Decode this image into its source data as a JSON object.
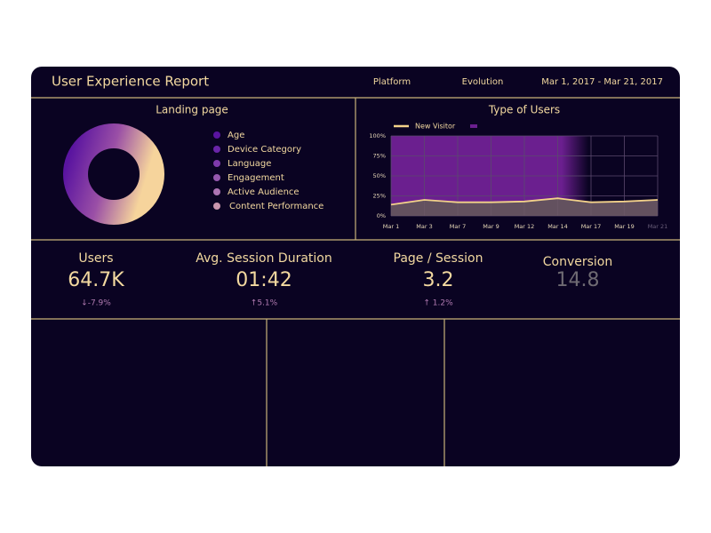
{
  "header": {
    "title": "User Experience Report",
    "nav": [
      "Platform",
      "Evolution"
    ],
    "date_range": "Mar 1, 2017 - Mar 21, 2017"
  },
  "landing_page": {
    "title": "Landing page",
    "legend": [
      "Age",
      "Device Category",
      "Language",
      "Engagement",
      "Active Audience",
      "Content Performance"
    ]
  },
  "type_of_users": {
    "chart_data": {
      "type": "area",
      "title": "Type of Users",
      "categories": [
        "Mar 1",
        "Mar 3",
        "Mar 7",
        "Mar 9",
        "Mar 12",
        "Mar 14",
        "Mar 17",
        "Mar 19",
        "Mar 21"
      ],
      "series": [
        {
          "name": "New Visitor",
          "color": "#f3d28a",
          "values": [
            14,
            20,
            17,
            17,
            18,
            22,
            17,
            18,
            20
          ]
        },
        {
          "color": "#6b1f8f",
          "values": [
            100,
            100,
            100,
            100,
            100,
            100,
            null,
            null,
            null
          ]
        }
      ],
      "ylim": [
        0,
        100
      ],
      "yticks": [
        {
          "value": 0,
          "label": "0%"
        },
        {
          "value": 25,
          "label": "25%"
        },
        {
          "value": 50,
          "label": "50%"
        },
        {
          "value": 75,
          "label": "75%"
        },
        {
          "value": 100,
          "label": "100%"
        }
      ],
      "grid": true
    }
  },
  "kpis": [
    {
      "label": "Users",
      "value": "64.7K",
      "change": "↓-7.9%"
    },
    {
      "label": "Avg. Session Duration",
      "value": "01:42",
      "change": "↑5.1%"
    },
    {
      "label": "Page / Session",
      "value": "3.2",
      "change": "↑ 1.2%"
    },
    {
      "label": "Conversion",
      "value": "14.8"
    }
  ]
}
